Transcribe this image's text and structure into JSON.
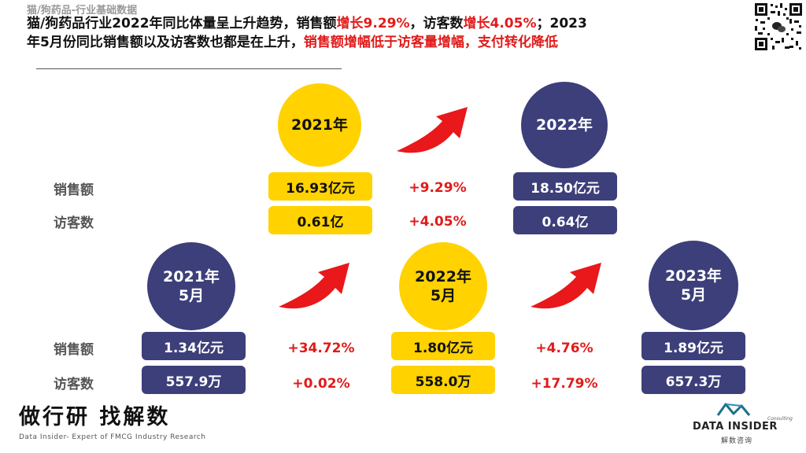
{
  "header": {
    "subtitle": "猫/狗药品-行业基础数据",
    "line1_a": "猫/狗药品行业2022年同比体量呈上升趋势，销售额",
    "line1_b": "增长9.29%",
    "line1_c": "，访客数",
    "line1_d": "增长4.05%",
    "line1_e": "；2023",
    "line2_a": "年5月份同比销售额以及访客数也都是在上升，",
    "line2_b": "销售额增幅低于访客量增幅，支付转化降低"
  },
  "colors": {
    "yellow": "#ffd200",
    "navy": "#3d3f7a",
    "red": "#e01b1b",
    "arrow": "#e8181b"
  },
  "annual": {
    "year_a": "2021年",
    "year_b": "2022年",
    "sales_label": "销售额",
    "visitors_label": "访客数",
    "sales_a": "16.93亿元",
    "sales_b": "18.50亿元",
    "visitors_a": "0.61亿",
    "visitors_b": "0.64亿",
    "sales_change": "+9.29%",
    "visitors_change": "+4.05%"
  },
  "may": {
    "p1_line1": "2021年",
    "p1_line2": "5月",
    "p2_line1": "2022年",
    "p2_line2": "5月",
    "p3_line1": "2023年",
    "p3_line2": "5月",
    "sales_label": "销售额",
    "visitors_label": "访客数",
    "sales": [
      "1.34亿元",
      "1.80亿元",
      "1.89亿元"
    ],
    "visitors": [
      "557.9万",
      "558.0万",
      "657.3万"
    ],
    "sales_change": [
      "+34.72%",
      "+4.76%"
    ],
    "visitors_change": [
      "+0.02%",
      "+17.79%"
    ]
  },
  "footer": {
    "brand_cn": "做行研 找解数",
    "brand_en": "Data Insider- Expert of FMCG Industry Research",
    "logo_name": "DATA INSIDER",
    "logo_consult": "Consulting",
    "logo_cn": "解数咨询"
  },
  "icons": {
    "qr": "qr-code-icon",
    "arrow": "red-curved-arrow-icon",
    "logo": "data-insider-logo-icon"
  }
}
